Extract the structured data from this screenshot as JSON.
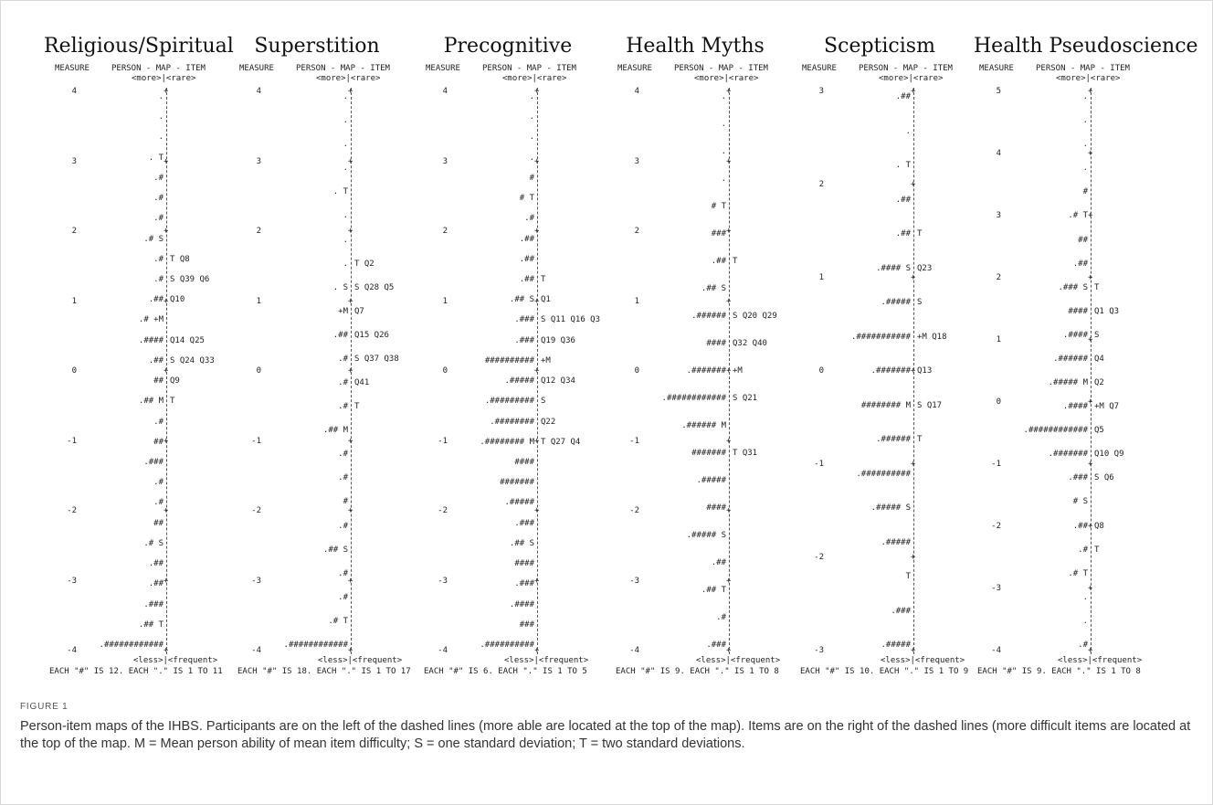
{
  "figure": {
    "label": "FIGURE 1",
    "caption": "Person-item maps of the IHBS. Participants are on the left of the dashed lines (more able are located at the top of the map). Items are on the right of the dashed lines (more difficult items are located at the top of the map. M = Mean person ability of mean item difficulty; S = one standard deviation; T = two standard deviations."
  },
  "common": {
    "measure_label": "MEASURE",
    "map_label": "PERSON - MAP - ITEM",
    "top_marker": "<more>|<rare>",
    "bottom_marker": "<less>|<frequent>"
  },
  "panels": [
    {
      "title": "Religious/Spiritual",
      "ticks": [
        "4",
        "3",
        "2",
        "1",
        "0",
        "-1",
        "-2",
        "-3",
        "-4"
      ],
      "footer": "EACH \"#\" IS 12. EACH \".\" IS 1 TO 11",
      "rows": [
        {
          "p": ".",
          "i": ""
        },
        {
          "p": ".",
          "i": ""
        },
        {
          "p": ".",
          "i": ""
        },
        {
          "p": ". T",
          "i": ""
        },
        {
          "p": ".#",
          "i": ""
        },
        {
          "p": ".#",
          "i": ""
        },
        {
          "p": ".#",
          "i": ""
        },
        {
          "p": ".# S",
          "i": ""
        },
        {
          "p": ".#",
          "i": "T Q8"
        },
        {
          "p": ".#",
          "i": "S Q39 Q6"
        },
        {
          "p": ".##",
          "i": "Q10"
        },
        {
          "p": ".# +M",
          "i": ""
        },
        {
          "p": ".####",
          "i": "Q14 Q25"
        },
        {
          "p": ".##",
          "i": "S Q24 Q33"
        },
        {
          "p": "##",
          "i": "Q9"
        },
        {
          "p": ".## M",
          "i": "T"
        },
        {
          "p": ".#",
          "i": ""
        },
        {
          "p": "##",
          "i": ""
        },
        {
          "p": ".###",
          "i": ""
        },
        {
          "p": ".#",
          "i": ""
        },
        {
          "p": ".#",
          "i": ""
        },
        {
          "p": "##",
          "i": ""
        },
        {
          "p": ".# S",
          "i": ""
        },
        {
          "p": ".##",
          "i": ""
        },
        {
          "p": ".##",
          "i": ""
        },
        {
          "p": ".###",
          "i": ""
        },
        {
          "p": ".## T",
          "i": ""
        },
        {
          "p": ".############",
          "i": ""
        }
      ]
    },
    {
      "title": "Superstition",
      "ticks": [
        "4",
        "3",
        "2",
        "1",
        "0",
        "-1",
        "-2",
        "-3",
        "-4"
      ],
      "footer": "EACH \"#\" IS 18. EACH \".\" IS 1 TO 17",
      "rows": [
        {
          "p": ".",
          "i": ""
        },
        {
          "p": ".",
          "i": ""
        },
        {
          "p": ".",
          "i": ""
        },
        {
          "p": ".",
          "i": ""
        },
        {
          "p": ". T",
          "i": ""
        },
        {
          "p": ".",
          "i": ""
        },
        {
          "p": ".",
          "i": ""
        },
        {
          "p": ".",
          "i": "T Q2"
        },
        {
          "p": ". S",
          "i": "S Q28 Q5"
        },
        {
          "p": "+M",
          "i": "Q7"
        },
        {
          "p": ".##",
          "i": "Q15 Q26"
        },
        {
          "p": ".#",
          "i": "S Q37 Q38"
        },
        {
          "p": ".#",
          "i": "Q41"
        },
        {
          "p": ".#",
          "i": "T"
        },
        {
          "p": ".## M",
          "i": ""
        },
        {
          "p": ".#",
          "i": ""
        },
        {
          "p": ".#",
          "i": ""
        },
        {
          "p": "#",
          "i": ""
        },
        {
          "p": ".#",
          "i": ""
        },
        {
          "p": ".## S",
          "i": ""
        },
        {
          "p": ".#",
          "i": ""
        },
        {
          "p": ".#",
          "i": ""
        },
        {
          "p": ".# T",
          "i": ""
        },
        {
          "p": ".############",
          "i": ""
        }
      ]
    },
    {
      "title": "Precognitive",
      "ticks": [
        "4",
        "3",
        "2",
        "1",
        "0",
        "-1",
        "-2",
        "-3",
        "-4"
      ],
      "footer": "EACH \"#\" IS 6. EACH \".\" IS 1 TO 5",
      "rows": [
        {
          "p": ".",
          "i": ""
        },
        {
          "p": ".",
          "i": ""
        },
        {
          "p": ".",
          "i": ""
        },
        {
          "p": ".",
          "i": ""
        },
        {
          "p": "#",
          "i": ""
        },
        {
          "p": "# T",
          "i": ""
        },
        {
          "p": ".#",
          "i": ""
        },
        {
          "p": ".##",
          "i": ""
        },
        {
          "p": ".##",
          "i": ""
        },
        {
          "p": ".##",
          "i": "T"
        },
        {
          "p": ".## S",
          "i": "Q1"
        },
        {
          "p": ".###",
          "i": "S Q11 Q16 Q3"
        },
        {
          "p": ".###",
          "i": "Q19 Q36"
        },
        {
          "p": "##########",
          "i": "+M"
        },
        {
          "p": ".#####",
          "i": "Q12 Q34"
        },
        {
          "p": ".#########",
          "i": "S"
        },
        {
          "p": ".########",
          "i": "Q22"
        },
        {
          "p": ".######## M",
          "i": "T Q27 Q4"
        },
        {
          "p": "####",
          "i": ""
        },
        {
          "p": "#######",
          "i": ""
        },
        {
          "p": ".#####",
          "i": ""
        },
        {
          "p": ".###",
          "i": ""
        },
        {
          "p": ".## S",
          "i": ""
        },
        {
          "p": "####",
          "i": ""
        },
        {
          "p": ".###",
          "i": ""
        },
        {
          "p": ".####",
          "i": ""
        },
        {
          "p": "###",
          "i": ""
        },
        {
          "p": ".##########",
          "i": ""
        }
      ]
    },
    {
      "title": "Health Myths",
      "ticks": [
        "4",
        "3",
        "2",
        "1",
        "0",
        "-1",
        "-2",
        "-3",
        "-4"
      ],
      "footer": "EACH \"#\" IS 9. EACH \".\" IS 1 TO 8",
      "rows": [
        {
          "p": ".",
          "i": ""
        },
        {
          "p": ".",
          "i": ""
        },
        {
          "p": ".",
          "i": ""
        },
        {
          "p": ".",
          "i": ""
        },
        {
          "p": "# T",
          "i": ""
        },
        {
          "p": "###",
          "i": ""
        },
        {
          "p": ".##",
          "i": "T"
        },
        {
          "p": ".## S",
          "i": ""
        },
        {
          "p": ".######",
          "i": "S Q20 Q29"
        },
        {
          "p": "####",
          "i": "Q32 Q40"
        },
        {
          "p": ".#######",
          "i": "+M"
        },
        {
          "p": ".############",
          "i": "S Q21"
        },
        {
          "p": ".###### M",
          "i": ""
        },
        {
          "p": "#######",
          "i": "T Q31"
        },
        {
          "p": ".#####",
          "i": ""
        },
        {
          "p": "####",
          "i": ""
        },
        {
          "p": ".##### S",
          "i": ""
        },
        {
          "p": ".##",
          "i": ""
        },
        {
          "p": ".## T",
          "i": ""
        },
        {
          "p": ".#",
          "i": ""
        },
        {
          "p": ".###",
          "i": ""
        }
      ]
    },
    {
      "title": "Scepticism",
      "ticks": [
        "3",
        "2",
        "1",
        "0",
        "-1",
        "-2",
        "-3"
      ],
      "footer": "EACH \"#\" IS 10. EACH \".\" IS 1 TO 9",
      "rows": [
        {
          "p": ".##",
          "i": ""
        },
        {
          "p": ".",
          "i": ""
        },
        {
          "p": ". T",
          "i": ""
        },
        {
          "p": ".##",
          "i": ""
        },
        {
          "p": ".##",
          "i": "T"
        },
        {
          "p": ".#### S",
          "i": "Q23"
        },
        {
          "p": ".#####",
          "i": "S"
        },
        {
          "p": ".###########",
          "i": "+M Q18"
        },
        {
          "p": ".#######",
          "i": "Q13"
        },
        {
          "p": "######## M",
          "i": "S Q17"
        },
        {
          "p": ".######",
          "i": "T"
        },
        {
          "p": ".##########",
          "i": ""
        },
        {
          "p": ".##### S",
          "i": ""
        },
        {
          "p": ".#####",
          "i": ""
        },
        {
          "p": "T",
          "i": ""
        },
        {
          "p": ".###",
          "i": ""
        },
        {
          "p": ".#####",
          "i": ""
        }
      ]
    },
    {
      "title": "Health Pseudoscience",
      "ticks": [
        "5",
        "4",
        "3",
        "2",
        "1",
        "0",
        "-1",
        "-2",
        "-3",
        "-4"
      ],
      "footer": "EACH \"#\" IS 9. EACH \".\" IS 1 TO 8",
      "rows": [
        {
          "p": ".",
          "i": ""
        },
        {
          "p": ".",
          "i": ""
        },
        {
          "p": ".",
          "i": ""
        },
        {
          "p": ".",
          "i": ""
        },
        {
          "p": "#",
          "i": ""
        },
        {
          "p": ".# T",
          "i": ""
        },
        {
          "p": "##",
          "i": ""
        },
        {
          "p": ".##",
          "i": ""
        },
        {
          "p": ".### S",
          "i": "T"
        },
        {
          "p": "####",
          "i": "Q1 Q3"
        },
        {
          "p": ".####",
          "i": "S"
        },
        {
          "p": ".######",
          "i": "Q4"
        },
        {
          "p": ".##### M",
          "i": "Q2"
        },
        {
          "p": ".####",
          "i": "+M Q7"
        },
        {
          "p": ".############",
          "i": "Q5"
        },
        {
          "p": ".#######",
          "i": "Q10 Q9"
        },
        {
          "p": ".###",
          "i": "S Q6"
        },
        {
          "p": "# S",
          "i": ""
        },
        {
          "p": ".##",
          "i": "Q8"
        },
        {
          "p": ".#",
          "i": "T"
        },
        {
          "p": ".# T",
          "i": ""
        },
        {
          "p": ".",
          "i": ""
        },
        {
          "p": ".",
          "i": ""
        },
        {
          "p": ".#",
          "i": ""
        }
      ]
    }
  ]
}
